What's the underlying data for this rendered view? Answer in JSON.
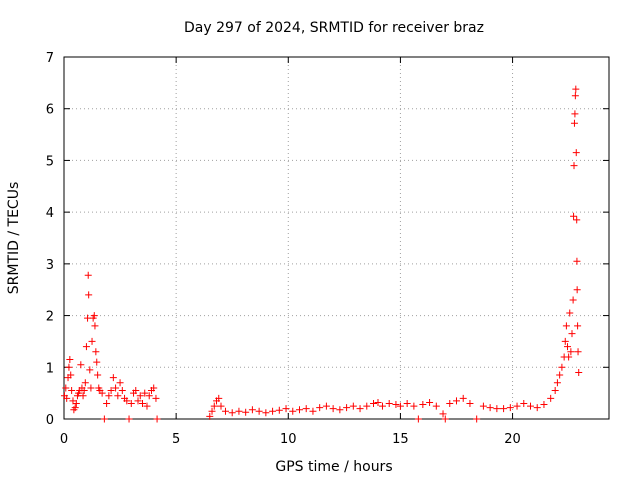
{
  "chart_data": {
    "type": "scatter",
    "title": "Day 297 of 2024, SRMTID for receiver braz",
    "xlabel": "GPS time / hours",
    "ylabel": "SRMTID / TECUs",
    "xlim": [
      0,
      24.3
    ],
    "ylim": [
      0,
      7
    ],
    "xticks": [
      0,
      5,
      10,
      15,
      20
    ],
    "yticks": [
      0,
      1,
      2,
      3,
      4,
      5,
      6,
      7
    ],
    "xtick_labels": [
      "0",
      "5",
      "10",
      "15",
      "20"
    ],
    "ytick_labels": [
      "0",
      "1",
      "2",
      "3",
      "4",
      "5",
      "6",
      "7"
    ],
    "grid": true,
    "marker": "+",
    "color": "#ff0000",
    "series": [
      {
        "name": "SRMTID",
        "points": [
          [
            0.02,
            0.45
          ],
          [
            0.08,
            0.6
          ],
          [
            0.12,
            0.4
          ],
          [
            0.18,
            0.8
          ],
          [
            0.22,
            1.0
          ],
          [
            0.26,
            1.15
          ],
          [
            0.3,
            0.85
          ],
          [
            0.34,
            0.55
          ],
          [
            0.4,
            0.35
          ],
          [
            0.44,
            0.18
          ],
          [
            0.5,
            0.22
          ],
          [
            0.55,
            0.3
          ],
          [
            0.6,
            0.45
          ],
          [
            0.65,
            0.5
          ],
          [
            0.7,
            0.55
          ],
          [
            0.75,
            1.05
          ],
          [
            0.8,
            0.6
          ],
          [
            0.85,
            0.45
          ],
          [
            0.9,
            0.55
          ],
          [
            0.95,
            0.7
          ],
          [
            1.0,
            1.4
          ],
          [
            1.05,
            1.95
          ],
          [
            1.08,
            2.78
          ],
          [
            1.1,
            2.4
          ],
          [
            1.15,
            0.95
          ],
          [
            1.2,
            0.6
          ],
          [
            1.25,
            1.5
          ],
          [
            1.3,
            1.95
          ],
          [
            1.35,
            2.0
          ],
          [
            1.38,
            1.8
          ],
          [
            1.42,
            1.3
          ],
          [
            1.46,
            1.1
          ],
          [
            1.5,
            0.85
          ],
          [
            1.55,
            0.6
          ],
          [
            1.6,
            0.55
          ],
          [
            1.7,
            0.5
          ],
          [
            1.8,
            0.0
          ],
          [
            1.9,
            0.3
          ],
          [
            2.0,
            0.45
          ],
          [
            2.1,
            0.55
          ],
          [
            2.2,
            0.8
          ],
          [
            2.3,
            0.6
          ],
          [
            2.4,
            0.45
          ],
          [
            2.5,
            0.7
          ],
          [
            2.6,
            0.55
          ],
          [
            2.7,
            0.4
          ],
          [
            2.8,
            0.35
          ],
          [
            2.9,
            0.0
          ],
          [
            3.0,
            0.3
          ],
          [
            3.1,
            0.5
          ],
          [
            3.2,
            0.55
          ],
          [
            3.3,
            0.35
          ],
          [
            3.4,
            0.45
          ],
          [
            3.5,
            0.3
          ],
          [
            3.6,
            0.5
          ],
          [
            3.7,
            0.25
          ],
          [
            3.8,
            0.45
          ],
          [
            3.9,
            0.55
          ],
          [
            4.0,
            0.6
          ],
          [
            4.1,
            0.4
          ],
          [
            4.15,
            0.0
          ],
          [
            6.5,
            0.05
          ],
          [
            6.6,
            0.15
          ],
          [
            6.7,
            0.25
          ],
          [
            6.8,
            0.35
          ],
          [
            6.9,
            0.4
          ],
          [
            7.0,
            0.25
          ],
          [
            7.2,
            0.15
          ],
          [
            7.5,
            0.12
          ],
          [
            7.8,
            0.15
          ],
          [
            8.1,
            0.13
          ],
          [
            8.4,
            0.18
          ],
          [
            8.7,
            0.15
          ],
          [
            9.0,
            0.12
          ],
          [
            9.3,
            0.15
          ],
          [
            9.6,
            0.17
          ],
          [
            9.9,
            0.2
          ],
          [
            10.2,
            0.15
          ],
          [
            10.5,
            0.18
          ],
          [
            10.8,
            0.2
          ],
          [
            11.1,
            0.15
          ],
          [
            11.4,
            0.22
          ],
          [
            11.7,
            0.25
          ],
          [
            12.0,
            0.2
          ],
          [
            12.3,
            0.18
          ],
          [
            12.6,
            0.22
          ],
          [
            12.9,
            0.25
          ],
          [
            13.2,
            0.2
          ],
          [
            13.5,
            0.25
          ],
          [
            13.8,
            0.3
          ],
          [
            14.0,
            0.32
          ],
          [
            14.2,
            0.25
          ],
          [
            14.5,
            0.3
          ],
          [
            14.8,
            0.28
          ],
          [
            15.0,
            0.25
          ],
          [
            15.3,
            0.3
          ],
          [
            15.6,
            0.25
          ],
          [
            15.8,
            0.0
          ],
          [
            16.0,
            0.28
          ],
          [
            16.3,
            0.32
          ],
          [
            16.6,
            0.25
          ],
          [
            16.9,
            0.1
          ],
          [
            17.0,
            0.0
          ],
          [
            17.2,
            0.3
          ],
          [
            17.5,
            0.35
          ],
          [
            17.8,
            0.4
          ],
          [
            18.1,
            0.3
          ],
          [
            18.4,
            0.0
          ],
          [
            18.7,
            0.25
          ],
          [
            19.0,
            0.22
          ],
          [
            19.3,
            0.2
          ],
          [
            19.6,
            0.2
          ],
          [
            19.9,
            0.22
          ],
          [
            20.2,
            0.25
          ],
          [
            20.5,
            0.3
          ],
          [
            20.8,
            0.25
          ],
          [
            21.1,
            0.22
          ],
          [
            21.4,
            0.28
          ],
          [
            21.7,
            0.4
          ],
          [
            21.9,
            0.55
          ],
          [
            22.0,
            0.7
          ],
          [
            22.1,
            0.85
          ],
          [
            22.2,
            1.0
          ],
          [
            22.3,
            1.2
          ],
          [
            22.35,
            1.5
          ],
          [
            22.4,
            1.8
          ],
          [
            22.45,
            1.4
          ],
          [
            22.5,
            1.2
          ],
          [
            22.55,
            2.05
          ],
          [
            22.6,
            1.3
          ],
          [
            22.65,
            1.65
          ],
          [
            22.7,
            2.3
          ],
          [
            22.72,
            3.92
          ],
          [
            22.74,
            4.9
          ],
          [
            22.76,
            5.72
          ],
          [
            22.78,
            5.9
          ],
          [
            22.8,
            6.25
          ],
          [
            22.82,
            6.38
          ],
          [
            22.84,
            5.15
          ],
          [
            22.86,
            3.85
          ],
          [
            22.87,
            3.05
          ],
          [
            22.88,
            2.5
          ],
          [
            22.9,
            1.8
          ],
          [
            22.92,
            1.3
          ],
          [
            22.95,
            0.9
          ]
        ]
      }
    ]
  }
}
